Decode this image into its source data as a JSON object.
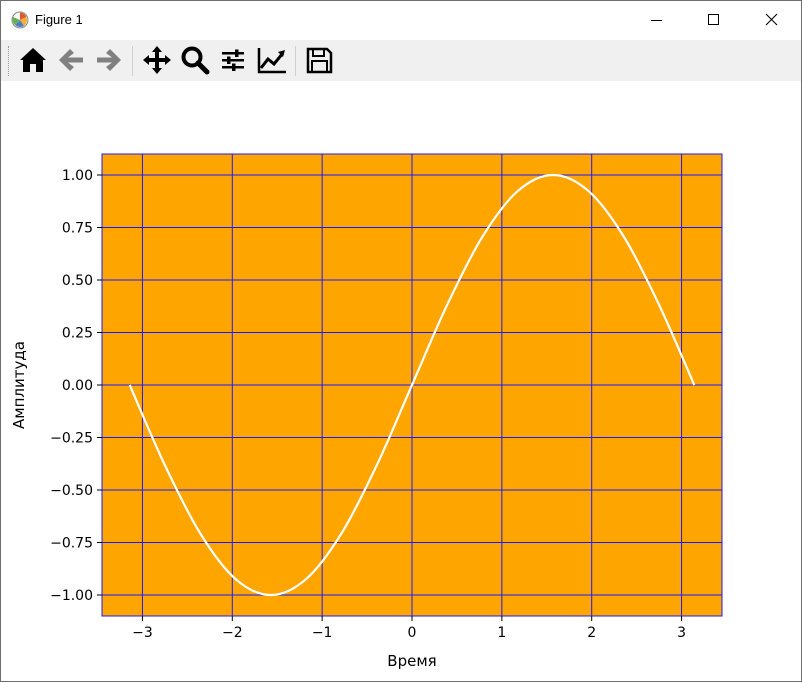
{
  "window": {
    "title": "Figure 1",
    "controls": [
      "minimize-icon",
      "maximize-icon",
      "close-icon"
    ]
  },
  "toolbar": {
    "buttons": [
      "home-icon",
      "back-icon",
      "forward-icon",
      "pan-icon",
      "zoom-icon",
      "subplots-icon",
      "edit-axes-icon",
      "save-icon"
    ]
  },
  "colors": {
    "axes_background": "#ffa500",
    "grid": "#1a1aff",
    "line": "#ffffff",
    "spine": "#1a1aff"
  },
  "chart_data": {
    "type": "line",
    "title": "",
    "xlabel": "Время",
    "ylabel": "Амплитуда",
    "xlim": [
      -3.45,
      3.45
    ],
    "ylim": [
      -1.1,
      1.1
    ],
    "xticks": [
      -3,
      -2,
      -1,
      0,
      1,
      2,
      3
    ],
    "xtick_labels": [
      "−3",
      "−2",
      "−1",
      "0",
      "1",
      "2",
      "3"
    ],
    "yticks": [
      -1.0,
      -0.75,
      -0.5,
      -0.25,
      0.0,
      0.25,
      0.5,
      0.75,
      1.0
    ],
    "ytick_labels": [
      "−1.00",
      "−0.75",
      "−0.50",
      "−0.25",
      "0.00",
      "0.25",
      "0.50",
      "0.75",
      "1.00"
    ],
    "grid": true,
    "series": [
      {
        "function": "sin(x)",
        "x": [
          -3.1416,
          -2.7489,
          -2.3562,
          -1.9635,
          -1.5708,
          -1.1781,
          -0.7854,
          -0.3927,
          0.0,
          0.3927,
          0.7854,
          1.1781,
          1.5708,
          1.9635,
          2.3562,
          2.7489,
          3.1416
        ],
        "y": [
          0.0,
          -0.3827,
          -0.7071,
          -0.9239,
          -1.0,
          -0.9239,
          -0.7071,
          -0.3827,
          0.0,
          0.3827,
          0.7071,
          0.9239,
          1.0,
          0.9239,
          0.7071,
          0.3827,
          0.0
        ]
      }
    ]
  }
}
